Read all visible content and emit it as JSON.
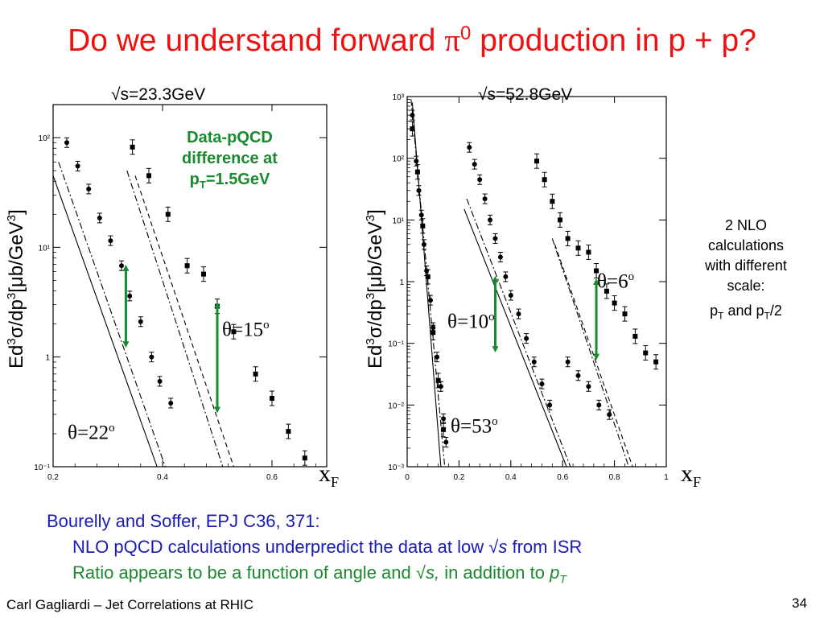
{
  "slide": {
    "title_main": "Do we understand forward ",
    "title_pi": "π",
    "title_sup": "0",
    "title_tail": " production in p + p?",
    "footer": "Carl Gagliardi – Jet Correlations at RHIC",
    "page_number": "34"
  },
  "panels": [
    {
      "sqrt_s_label": "√s=23.3GeV"
    },
    {
      "sqrt_s_label": "√s=52.8GeV"
    }
  ],
  "ylabel": {
    "part1": "Ed",
    "sup1": "3",
    "part2": "σ/dp",
    "sup2": "3",
    "part3": "[μb/GeV",
    "sup3": "3",
    "part4": "]"
  },
  "xlabel": {
    "main": "x",
    "sub": "F"
  },
  "angles": {
    "a15": {
      "theta": "θ=15",
      "deg": "o"
    },
    "a22": {
      "theta": "θ=22",
      "deg": "o"
    },
    "a10": {
      "theta": "θ=10",
      "deg": "o"
    },
    "a53": {
      "theta": "θ=53",
      "deg": "o"
    },
    "a6": {
      "theta": "θ=6",
      "deg": "o"
    }
  },
  "annotations": {
    "green_box": {
      "line1": "Data-pQCD",
      "line2": "difference at",
      "line3_main": "p",
      "line3_sub": "T",
      "line3_tail": "=1.5GeV"
    },
    "nlo_box": {
      "line1": "2 NLO",
      "line2": "calculations",
      "line3": "with different",
      "line4": "scale:",
      "line5_a": "p",
      "line5_a_sub": "T",
      "line5_b": " and  p",
      "line5_b_sub": "T",
      "line5_c": "/2"
    }
  },
  "citation": {
    "line1": "Bourelly and Soffer, EPJ C36, 371:",
    "line2_main": "NLO pQCD calculations underpredict the data at low ",
    "line2_sqrt": "√",
    "line2_s": "s",
    "line2_tail": " from ISR",
    "line3_main": "Ratio appears to be a function of angle and ",
    "line3_sqrt": "√",
    "line3_s": "s,",
    "line3_mid": " in addition to ",
    "line3_p": "p",
    "line3_sub": "T"
  },
  "colors": {
    "title": "#ee1111",
    "arrow": "#1a8a2e",
    "citation_blue": "#1a1ab8",
    "citation_green": "#1a8a2e"
  },
  "chart_data": [
    {
      "type": "scatter",
      "scale": "log-y",
      "xlim": [
        0.2,
        0.7
      ],
      "ylim": [
        0.1,
        200
      ],
      "xticks": [
        "0.2",
        "0.4",
        "0.6"
      ],
      "xtick_values": [
        0.2,
        0.4,
        0.6
      ],
      "yticks": [
        "10⁻¹",
        "1",
        "10¹",
        "10²"
      ],
      "ytick_values": [
        0.1,
        1,
        10,
        100
      ],
      "series": [
        {
          "marker": "circle",
          "points": [
            [
              0.225,
              90
            ],
            [
              0.245,
              55
            ],
            [
              0.265,
              34
            ],
            [
              0.285,
              18.5
            ],
            [
              0.305,
              11.5
            ],
            [
              0.325,
              6.8
            ],
            [
              0.34,
              3.6
            ],
            [
              0.36,
              2.1
            ],
            [
              0.38,
              1.0
            ],
            [
              0.395,
              0.6
            ],
            [
              0.415,
              0.38
            ]
          ]
        },
        {
          "marker": "square",
          "points": [
            [
              0.345,
              82
            ],
            [
              0.375,
              45
            ],
            [
              0.41,
              20
            ],
            [
              0.445,
              6.8
            ],
            [
              0.475,
              5.7
            ],
            [
              0.5,
              2.9
            ],
            [
              0.53,
              1.7
            ],
            [
              0.57,
              0.7
            ],
            [
              0.6,
              0.42
            ],
            [
              0.63,
              0.21
            ],
            [
              0.66,
              0.12
            ]
          ]
        }
      ],
      "curves": [
        {
          "style": "solid",
          "points": [
            [
              0.2,
              45
            ],
            [
              0.39,
              0.1
            ]
          ]
        },
        {
          "style": "dashdot",
          "points": [
            [
              0.21,
              60
            ],
            [
              0.405,
              0.1
            ]
          ]
        },
        {
          "style": "dashdot",
          "points": [
            [
              0.335,
              50
            ],
            [
              0.51,
              0.1
            ]
          ]
        },
        {
          "style": "dashed",
          "points": [
            [
              0.35,
              45
            ],
            [
              0.53,
              0.1
            ]
          ]
        }
      ],
      "arrows": [
        {
          "x": 0.333,
          "y_top": 6.5,
          "y_bottom": 1.3
        },
        {
          "x": 0.5,
          "y_top": 3.0,
          "y_bottom": 0.33
        }
      ]
    },
    {
      "type": "scatter",
      "scale": "log-y",
      "xlim": [
        0,
        1
      ],
      "ylim": [
        0.001,
        1000
      ],
      "xticks": [
        "0",
        "0.2",
        "0.4",
        "0.6",
        "0.8",
        "1"
      ],
      "xtick_values": [
        0,
        0.2,
        0.4,
        0.6,
        0.8,
        1
      ],
      "yticks": [
        "10⁻³",
        "10⁻²",
        "10⁻¹",
        "1",
        "10¹",
        "10²",
        "10³"
      ],
      "ytick_values": [
        0.001,
        0.01,
        0.1,
        1,
        10,
        100,
        1000
      ],
      "series": [
        {
          "marker": "circle",
          "points": [
            [
              0.02,
              500
            ],
            [
              0.035,
              90
            ],
            [
              0.045,
              30
            ],
            [
              0.055,
              12
            ],
            [
              0.065,
              4
            ],
            [
              0.075,
              1.5
            ],
            [
              0.09,
              0.5
            ],
            [
              0.1,
              0.18
            ],
            [
              0.115,
              0.06
            ],
            [
              0.13,
              0.02
            ],
            [
              0.14,
              0.006
            ],
            [
              0.15,
              0.0025
            ]
          ]
        },
        {
          "marker": "square",
          "points": [
            [
              0.02,
              300
            ],
            [
              0.04,
              60
            ],
            [
              0.06,
              8
            ],
            [
              0.08,
              1.2
            ],
            [
              0.1,
              0.15
            ],
            [
              0.12,
              0.025
            ],
            [
              0.14,
              0.004
            ]
          ]
        },
        {
          "marker": "circle",
          "points": [
            [
              0.24,
              150
            ],
            [
              0.26,
              80
            ],
            [
              0.28,
              45
            ],
            [
              0.3,
              22
            ],
            [
              0.32,
              10
            ],
            [
              0.34,
              5
            ],
            [
              0.36,
              2.5
            ],
            [
              0.38,
              1.2
            ],
            [
              0.4,
              0.6
            ],
            [
              0.43,
              0.3
            ],
            [
              0.46,
              0.12
            ],
            [
              0.49,
              0.05
            ],
            [
              0.52,
              0.022
            ],
            [
              0.55,
              0.01
            ]
          ]
        },
        {
          "marker": "square",
          "points": [
            [
              0.5,
              90
            ],
            [
              0.53,
              45
            ],
            [
              0.56,
              20
            ],
            [
              0.59,
              10
            ],
            [
              0.62,
              5
            ],
            [
              0.66,
              3.5
            ],
            [
              0.7,
              3
            ],
            [
              0.73,
              1.5
            ],
            [
              0.77,
              0.7
            ],
            [
              0.8,
              0.45
            ],
            [
              0.84,
              0.3
            ],
            [
              0.88,
              0.13
            ],
            [
              0.92,
              0.07
            ],
            [
              0.96,
              0.05
            ]
          ]
        },
        {
          "marker": "circle",
          "points": [
            [
              0.62,
              0.05
            ],
            [
              0.66,
              0.03
            ],
            [
              0.7,
              0.02
            ],
            [
              0.74,
              0.01
            ],
            [
              0.78,
              0.007
            ]
          ]
        }
      ],
      "curves": [
        {
          "style": "solid",
          "points": [
            [
              0.02,
              800
            ],
            [
              0.13,
              0.001
            ]
          ]
        },
        {
          "style": "dashdot",
          "points": [
            [
              0.015,
              900
            ],
            [
              0.145,
              0.001
            ]
          ]
        },
        {
          "style": "solid",
          "points": [
            [
              0.22,
              15
            ],
            [
              0.615,
              0.001
            ]
          ]
        },
        {
          "style": "dashdot",
          "points": [
            [
              0.23,
              22
            ],
            [
              0.63,
              0.001
            ]
          ]
        },
        {
          "style": "dashdot",
          "points": [
            [
              0.56,
              5
            ],
            [
              0.855,
              0.001
            ]
          ]
        },
        {
          "style": "dashed",
          "points": [
            [
              0.57,
              4
            ],
            [
              0.87,
              0.001
            ]
          ]
        }
      ],
      "arrows": [
        {
          "x": 0.34,
          "y_top": 1.1,
          "y_bottom": 0.08
        },
        {
          "x": 0.73,
          "y_top": 1.0,
          "y_bottom": 0.06
        }
      ]
    }
  ]
}
